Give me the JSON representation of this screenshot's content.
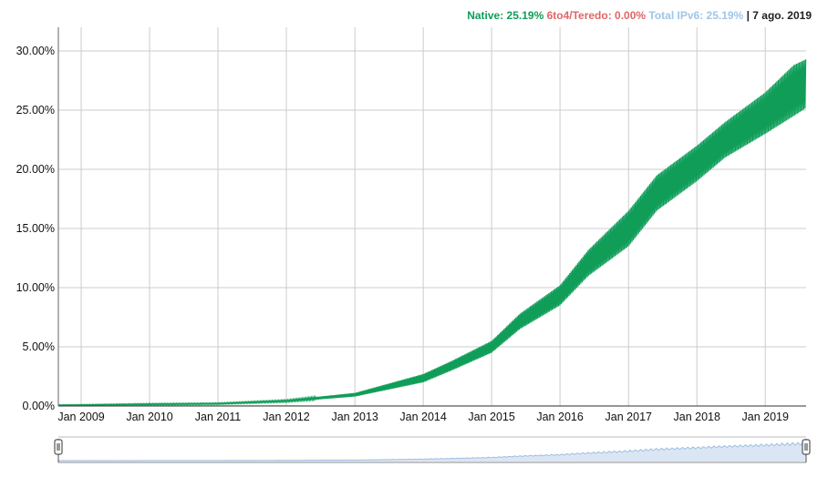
{
  "legend": {
    "native": "Native: 25.19%",
    "six_to_four": "6to4/Teredo: 0.00%",
    "total": "Total IPv6: 25.19%",
    "separator": "|",
    "date": "7 ago. 2019"
  },
  "colors": {
    "native": "#0f9d58",
    "six_to_four": "#e06666",
    "total": "#9fc5e8",
    "grid": "#cccccc",
    "navigator_fill": "#dbe6f4",
    "navigator_line": "#9fbfdf"
  },
  "chart_data": {
    "type": "area",
    "title": "",
    "xlabel": "",
    "ylabel": "",
    "x_ticks": [
      "Jan 2009",
      "Jan 2010",
      "Jan 2011",
      "Jan 2012",
      "Jan 2013",
      "Jan 2014",
      "Jan 2015",
      "Jan 2016",
      "Jan 2017",
      "Jan 2018",
      "Jan 2019"
    ],
    "y_ticks": [
      "0.00%",
      "5.00%",
      "10.00%",
      "15.00%",
      "20.00%",
      "25.00%",
      "30.00%"
    ],
    "ylim": [
      0,
      32
    ],
    "xlim": [
      "2008-09-01",
      "2019-08-07"
    ],
    "grid": true,
    "legend_position": "top-right",
    "series": [
      {
        "name": "Native",
        "color": "#0f9d58",
        "x": [
          "2008-09-01",
          "2009-01-01",
          "2010-01-01",
          "2011-01-01",
          "2012-01-01",
          "2013-01-01",
          "2014-01-01",
          "2014-06-01",
          "2015-01-01",
          "2015-06-01",
          "2016-01-01",
          "2016-06-01",
          "2017-01-01",
          "2017-06-01",
          "2018-01-01",
          "2018-06-01",
          "2019-01-01",
          "2019-06-01",
          "2019-08-07"
        ],
        "low": [
          0.05,
          0.05,
          0.1,
          0.15,
          0.35,
          0.8,
          2.0,
          3.0,
          4.5,
          6.5,
          8.5,
          11.0,
          13.5,
          16.5,
          19.0,
          21.0,
          23.0,
          24.5,
          25.19
        ],
        "high": [
          0.1,
          0.12,
          0.2,
          0.25,
          0.5,
          1.1,
          2.7,
          3.8,
          5.5,
          7.8,
          10.2,
          13.2,
          16.5,
          19.5,
          22.0,
          24.0,
          26.5,
          28.8,
          29.3
        ]
      },
      {
        "name": "6to4/Teredo",
        "color": "#e06666",
        "x": [
          "2008-09-01",
          "2019-08-07"
        ],
        "low": [
          0,
          0
        ],
        "high": [
          0.02,
          0.0
        ]
      }
    ]
  }
}
